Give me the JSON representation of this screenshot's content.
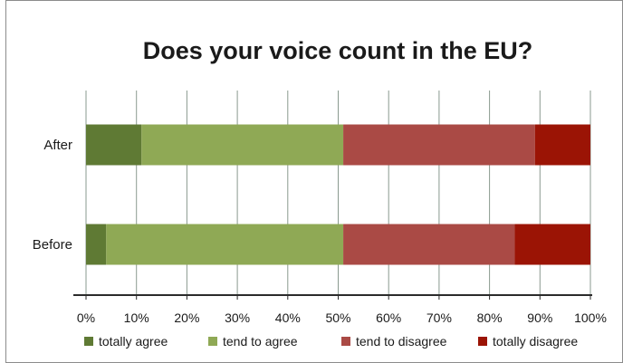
{
  "chart_data": {
    "type": "bar",
    "orientation": "horizontal",
    "stacked": true,
    "title": "Does your voice count in the EU?",
    "categories": [
      "After",
      "Before"
    ],
    "series": [
      {
        "name": "totally agree",
        "color": "#5f7a34",
        "values": [
          11,
          4
        ]
      },
      {
        "name": "tend to agree",
        "color": "#8fa955",
        "values": [
          40,
          47
        ]
      },
      {
        "name": "tend to disagree",
        "color": "#aa4a45",
        "values": [
          38,
          34
        ]
      },
      {
        "name": "totally disagree",
        "color": "#9b1405",
        "values": [
          11,
          15
        ]
      }
    ],
    "xlim": [
      0,
      100
    ],
    "x_ticks": [
      "0%",
      "10%",
      "20%",
      "30%",
      "40%",
      "50%",
      "60%",
      "70%",
      "80%",
      "90%",
      "100%"
    ],
    "grid": "vertical",
    "legend": "bottom"
  }
}
